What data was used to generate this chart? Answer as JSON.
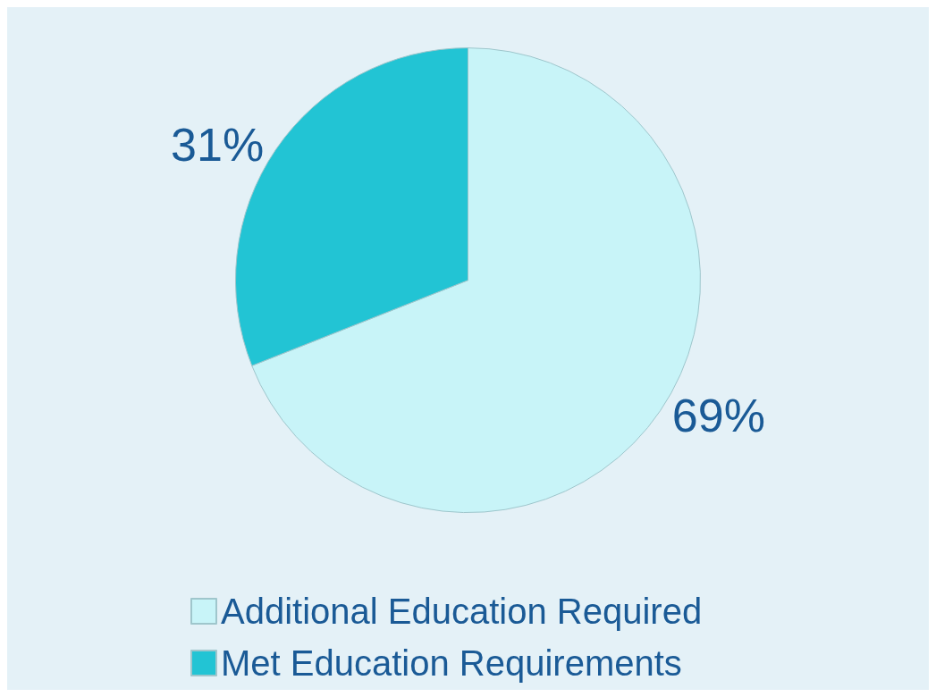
{
  "chart_data": {
    "type": "pie",
    "categories": [
      "Additional Education Required",
      "Met Education Requirements"
    ],
    "values": [
      69,
      31
    ],
    "colors": [
      "#c8f4f8",
      "#22c4d4"
    ],
    "value_labels": [
      "69%",
      "31%"
    ],
    "legend": "bottom"
  }
}
